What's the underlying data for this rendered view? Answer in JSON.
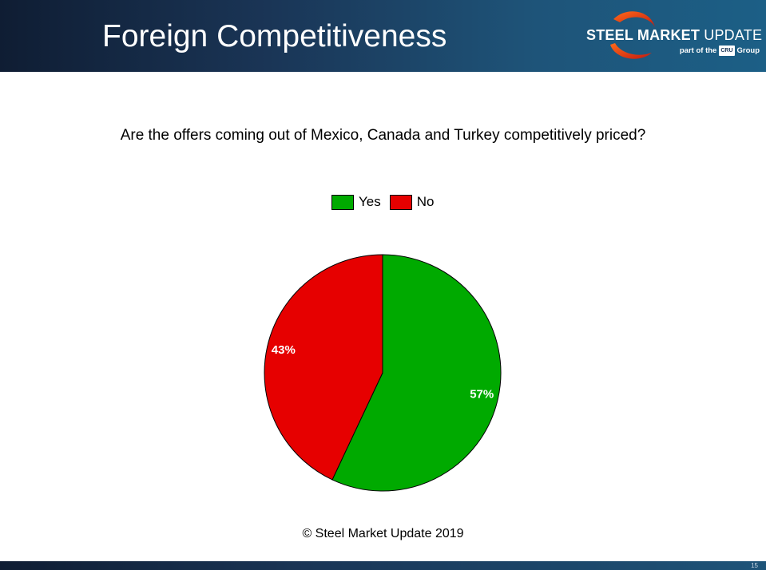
{
  "header": {
    "title": "Foreign Competitiveness",
    "brand_bold": "STEEL MARKET",
    "brand_light": "UPDATE",
    "sub_brand_prefix": "part of the",
    "sub_brand_box": "CRU",
    "sub_brand_suffix": "Group",
    "logo_icon": "swoosh-logo-icon",
    "colors": {
      "swoosh_start": "#ff6a1a",
      "swoosh_end": "#c21a10"
    }
  },
  "chart_data": {
    "type": "pie",
    "title": "Are the offers coming out of Mexico, Canada and Turkey competitively priced?",
    "categories": [
      "Yes",
      "No"
    ],
    "values": [
      57,
      43
    ],
    "data_labels": [
      "57%",
      "43%"
    ],
    "colors": [
      "#00aa00",
      "#e60000"
    ],
    "start_angle_deg": 0,
    "direction": "clockwise",
    "legend": {
      "position": "top",
      "entries": [
        "Yes",
        "No"
      ]
    }
  },
  "footer": {
    "copyright": "© Steel Market Update 2019",
    "page_number": "15"
  }
}
